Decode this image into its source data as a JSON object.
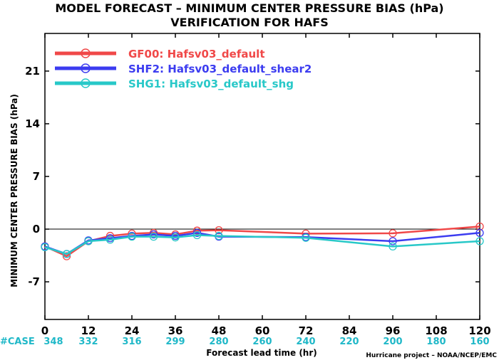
{
  "chart_data": {
    "type": "line",
    "title": "MODEL FORECAST – MINIMUM CENTER PRESSURE BIAS (hPa)",
    "subtitle": "VERIFICATION FOR HAFS",
    "xlabel": "Forecast lead time (hr)",
    "ylabel": "MINIMUM CENTER PRESSURE BIAS (hPa)",
    "xlim": [
      0,
      120
    ],
    "ylim": [
      -12,
      26
    ],
    "xticks": [
      0,
      12,
      24,
      36,
      48,
      60,
      72,
      84,
      96,
      108,
      120
    ],
    "xtick_labels": [
      "0",
      "12",
      "24",
      "36",
      "48",
      "60",
      "72",
      "84",
      "96",
      "108",
      "120"
    ],
    "yticks": [
      -7,
      0,
      7,
      14,
      21
    ],
    "ytick_labels": [
      "-7",
      "0",
      "7",
      "14",
      "21"
    ],
    "zero_line": true,
    "grid": false,
    "legend_position": "top-left",
    "series": [
      {
        "name": "GF00: Hafsv03_default",
        "color": "#f04848",
        "points": [
          [
            0,
            -2.3
          ],
          [
            6,
            -3.6
          ],
          [
            12,
            -1.6
          ],
          [
            18,
            -0.9
          ],
          [
            24,
            -0.6
          ],
          [
            30,
            -0.5
          ],
          [
            36,
            -0.7
          ],
          [
            42,
            -0.2
          ],
          [
            48,
            -0.15
          ],
          [
            72,
            -0.6
          ],
          [
            96,
            -0.55
          ],
          [
            120,
            0.35
          ]
        ]
      },
      {
        "name": "SHF2: Hafsv03_default_shear2",
        "color": "#3c3cf0",
        "points": [
          [
            0,
            -2.3
          ],
          [
            6,
            -3.3
          ],
          [
            12,
            -1.5
          ],
          [
            18,
            -1.2
          ],
          [
            24,
            -0.9
          ],
          [
            30,
            -0.7
          ],
          [
            36,
            -0.9
          ],
          [
            42,
            -0.5
          ],
          [
            48,
            -1.0
          ],
          [
            72,
            -1.05
          ],
          [
            96,
            -1.6
          ],
          [
            120,
            -0.5
          ]
        ]
      },
      {
        "name": "SHG1: Hafsv03_default_shg",
        "color": "#28c8c8",
        "points": [
          [
            0,
            -2.4
          ],
          [
            6,
            -3.3
          ],
          [
            12,
            -1.6
          ],
          [
            18,
            -1.4
          ],
          [
            24,
            -1.0
          ],
          [
            30,
            -1.0
          ],
          [
            36,
            -1.1
          ],
          [
            42,
            -0.8
          ],
          [
            48,
            -0.9
          ],
          [
            72,
            -1.15
          ],
          [
            96,
            -2.3
          ],
          [
            120,
            -1.6
          ]
        ]
      }
    ],
    "case_label": "#CASE",
    "case_color": "#20b8c8",
    "case_counts": [
      {
        "x": 0,
        "count": "348"
      },
      {
        "x": 12,
        "count": "332"
      },
      {
        "x": 24,
        "count": "316"
      },
      {
        "x": 36,
        "count": "299"
      },
      {
        "x": 48,
        "count": "280"
      },
      {
        "x": 60,
        "count": "260"
      },
      {
        "x": 72,
        "count": "240"
      },
      {
        "x": 84,
        "count": "220"
      },
      {
        "x": 96,
        "count": "200"
      },
      {
        "x": 108,
        "count": "180"
      },
      {
        "x": 120,
        "count": "160"
      }
    ],
    "credit": "Hurricane project – NOAA/NCEP/EMC"
  }
}
